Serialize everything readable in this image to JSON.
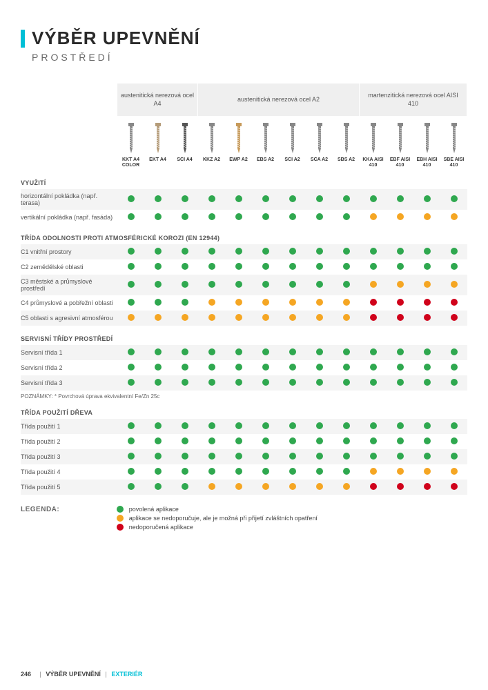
{
  "title": "VÝBĚR UPEVNĚNÍ",
  "subtitle": "PROSTŘEDÍ",
  "colors": {
    "accent": "#00bfd6",
    "green": "#2fa84f",
    "orange": "#f5a623",
    "red": "#d0021b",
    "header_bg": "#efefef",
    "row_a": "#f4f4f4",
    "row_b": "#ffffff"
  },
  "steel_groups": [
    {
      "label": "austenitická nerezová\nocel A4",
      "span": 3
    },
    {
      "label": "austenitická nerezová\nocel A2",
      "span": 6
    },
    {
      "label": "martenzitická nerezová\nocel AISI 410",
      "span": 4
    }
  ],
  "products": [
    "KKT A4 COLOR",
    "EKT A4",
    "SCI A4",
    "KKZ A2",
    "EWP A2",
    "EBS A2",
    "SCI A2",
    "SCA A2",
    "SBS A2",
    "KKA AISI 410",
    "EBF AISI 410",
    "EBH AISI 410",
    "SBE AISI 410"
  ],
  "sections": [
    {
      "header": "VYUŽITÍ",
      "rows": [
        {
          "label": "horizontální pokládka (např. terasa)",
          "dots": [
            "g",
            "g",
            "g",
            "g",
            "g",
            "g",
            "g",
            "g",
            "g",
            "g",
            "g",
            "g",
            "g"
          ]
        },
        {
          "label": "vertikální pokládka (např. fasáda)",
          "dots": [
            "g",
            "g",
            "g",
            "g",
            "g",
            "g",
            "g",
            "g",
            "g",
            "o",
            "o",
            "o",
            "o"
          ]
        }
      ]
    },
    {
      "header": "TŘÍDA ODOLNOSTI PROTI ATMOSFÉRICKÉ KOROZI (EN 12944)",
      "rows": [
        {
          "label": "C1 vnitřní prostory",
          "dots": [
            "g",
            "g",
            "g",
            "g",
            "g",
            "g",
            "g",
            "g",
            "g",
            "g",
            "g",
            "g",
            "g"
          ]
        },
        {
          "label": "C2 zemědělské oblasti",
          "dots": [
            "g",
            "g",
            "g",
            "g",
            "g",
            "g",
            "g",
            "g",
            "g",
            "g",
            "g",
            "g",
            "g"
          ]
        },
        {
          "label": "C3 městské a průmyslové prostředí",
          "dots": [
            "g",
            "g",
            "g",
            "g",
            "g",
            "g",
            "g",
            "g",
            "g",
            "o",
            "o",
            "o",
            "o"
          ]
        },
        {
          "label": "C4 průmyslové a pobřežní oblasti",
          "dots": [
            "g",
            "g",
            "g",
            "o",
            "o",
            "o",
            "o",
            "o",
            "o",
            "r",
            "r",
            "r",
            "r"
          ]
        },
        {
          "label": "C5 oblasti s agresivní atmosférou",
          "dots": [
            "o",
            "o",
            "o",
            "o",
            "o",
            "o",
            "o",
            "o",
            "o",
            "r",
            "r",
            "r",
            "r"
          ]
        }
      ]
    },
    {
      "header": "SERVISNÍ TŘÍDY PROSTŘEDÍ",
      "rows": [
        {
          "label": "Servisní třída 1",
          "dots": [
            "g",
            "g",
            "g",
            "g",
            "g",
            "g",
            "g",
            "g",
            "g",
            "g",
            "g",
            "g",
            "g"
          ]
        },
        {
          "label": "Servisní třída 2",
          "dots": [
            "g",
            "g",
            "g",
            "g",
            "g",
            "g",
            "g",
            "g",
            "g",
            "g",
            "g",
            "g",
            "g"
          ]
        },
        {
          "label": "Servisní třída 3",
          "dots": [
            "g",
            "g",
            "g",
            "g",
            "g",
            "g",
            "g",
            "g",
            "g",
            "g",
            "g",
            "g",
            "g"
          ]
        }
      ],
      "note": "POZNÁMKY: * Povrchová úprava ekvivalentní Fe/Zn 25c"
    },
    {
      "header": "TŘÍDA POUŽITÍ DŘEVA",
      "rows": [
        {
          "label": "Třída použití 1",
          "dots": [
            "g",
            "g",
            "g",
            "g",
            "g",
            "g",
            "g",
            "g",
            "g",
            "g",
            "g",
            "g",
            "g"
          ]
        },
        {
          "label": "Třída použití 2",
          "dots": [
            "g",
            "g",
            "g",
            "g",
            "g",
            "g",
            "g",
            "g",
            "g",
            "g",
            "g",
            "g",
            "g"
          ]
        },
        {
          "label": "Třída použití 3",
          "dots": [
            "g",
            "g",
            "g",
            "g",
            "g",
            "g",
            "g",
            "g",
            "g",
            "g",
            "g",
            "g",
            "g"
          ]
        },
        {
          "label": "Třída použití 4",
          "dots": [
            "g",
            "g",
            "g",
            "g",
            "g",
            "g",
            "g",
            "g",
            "g",
            "o",
            "o",
            "o",
            "o"
          ]
        },
        {
          "label": "Třída použití 5",
          "dots": [
            "g",
            "g",
            "g",
            "o",
            "o",
            "o",
            "o",
            "o",
            "o",
            "r",
            "r",
            "r",
            "r"
          ]
        }
      ]
    }
  ],
  "legend": {
    "title": "LEGENDA:",
    "items": [
      {
        "color": "green",
        "text": "povolená aplikace"
      },
      {
        "color": "orange",
        "text": "aplikace se nedoporučuje, ale je možná při přijetí zvláštních opatření"
      },
      {
        "color": "red",
        "text": "nedoporučená aplikace"
      }
    ]
  },
  "footer": {
    "page": "246",
    "section": "VÝBĚR UPEVNĚNÍ",
    "ext": "EXTERIÉR"
  }
}
